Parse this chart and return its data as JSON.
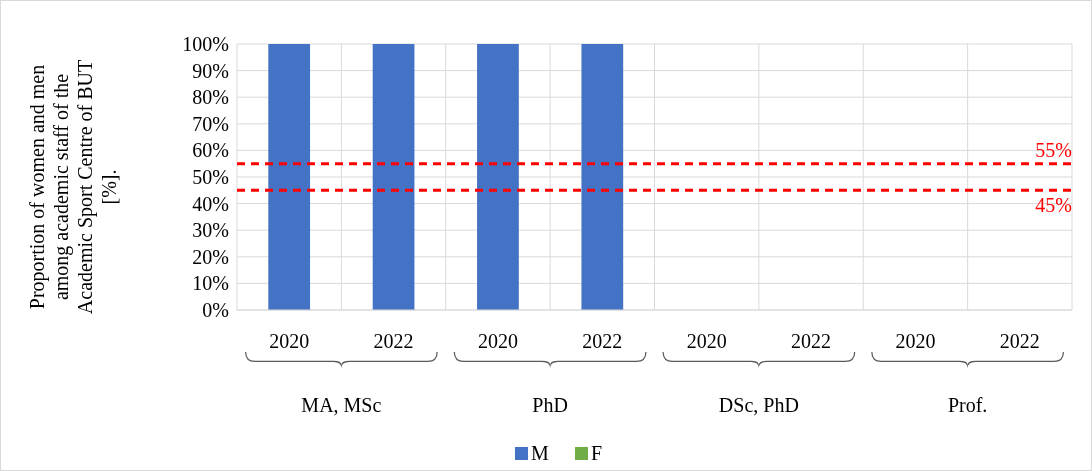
{
  "chart_data": {
    "type": "bar",
    "stacked": true,
    "ylabel": "Proportion of women and men among academic staff of the Academic Sport Centre of BUT [%].",
    "categories": [
      "2020",
      "2022",
      "2020",
      "2022",
      "2020",
      "2022",
      "2020",
      "2022"
    ],
    "annotations": [
      "MA, MSc",
      "PhD",
      "DSc, PhD",
      "Prof."
    ],
    "series": [
      {
        "name": "M",
        "color": "#4472c4",
        "values": [
          100,
          100,
          100,
          100,
          null,
          null,
          null,
          null
        ]
      },
      {
        "name": "F",
        "color": "#70ad47",
        "values": [
          0,
          0,
          0,
          0,
          null,
          null,
          null,
          null
        ]
      }
    ],
    "ylim": [
      0,
      100
    ],
    "yticks": [
      {
        "value": 0,
        "label": "0%"
      },
      {
        "value": 10,
        "label": "10%"
      },
      {
        "value": 20,
        "label": "20%"
      },
      {
        "value": 30,
        "label": "30%"
      },
      {
        "value": 40,
        "label": "40%"
      },
      {
        "value": 50,
        "label": "50%"
      },
      {
        "value": 60,
        "label": "60%"
      },
      {
        "value": 70,
        "label": "70%"
      },
      {
        "value": 80,
        "label": "80%"
      },
      {
        "value": 90,
        "label": "90%"
      },
      {
        "value": 100,
        "label": "100%"
      }
    ],
    "ref_lines": [
      {
        "axis": "y",
        "value": 55,
        "label": "55%",
        "color": "#ff0000",
        "line_style": "dashed"
      },
      {
        "axis": "y",
        "value": 45,
        "label": "45%",
        "color": "#ff0000",
        "line_style": "dashed"
      }
    ],
    "grid": true,
    "legend": "bottom"
  }
}
